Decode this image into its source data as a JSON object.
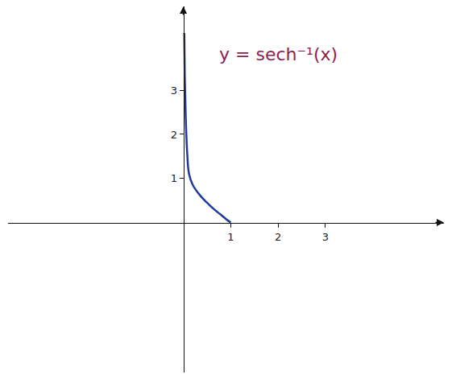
{
  "chart_data": {
    "type": "line",
    "title": "y = sech⁻¹(x)",
    "x": [
      0.02,
      0.03,
      0.05,
      0.08,
      0.12,
      0.2,
      0.35,
      0.5,
      0.65,
      0.8,
      0.9,
      1.0
    ],
    "values": [
      4.3,
      3.3,
      2.4,
      1.6,
      1.1,
      0.85,
      0.62,
      0.45,
      0.3,
      0.17,
      0.08,
      0
    ],
    "color": "#1f3a9e",
    "xlim": [
      -3.7,
      5.5
    ],
    "xticks": [
      1,
      2,
      3
    ],
    "ylim": [
      -3.4,
      4.9
    ],
    "yticks": [
      1,
      2,
      3
    ],
    "grid": false
  }
}
